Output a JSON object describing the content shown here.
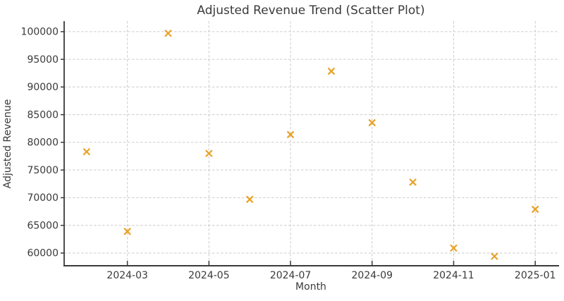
{
  "chart_data": {
    "type": "scatter",
    "title": "Adjusted Revenue Trend (Scatter Plot)",
    "xlabel": "Month",
    "ylabel": "Adjusted Revenue",
    "x": [
      "2024-02",
      "2024-03",
      "2024-04",
      "2024-05",
      "2024-06",
      "2024-07",
      "2024-08",
      "2024-09",
      "2024-10",
      "2024-11",
      "2024-12",
      "2025-01"
    ],
    "values": [
      78300,
      63900,
      99700,
      78000,
      69700,
      81400,
      92850,
      83550,
      72800,
      60900,
      59400,
      67900
    ],
    "x_tick_labels": [
      "2024-03",
      "2024-05",
      "2024-07",
      "2024-09",
      "2024-11",
      "2025-01"
    ],
    "y_ticks": [
      60000,
      65000,
      70000,
      75000,
      80000,
      85000,
      90000,
      95000,
      100000
    ],
    "ylim": [
      57700,
      101900
    ],
    "grid": true,
    "legend": false,
    "marker": "x",
    "colors": {
      "marker": "#E8A227",
      "grid": "#cccccc",
      "axis": "#3a3a3a",
      "text": "#3a3a3a"
    }
  }
}
